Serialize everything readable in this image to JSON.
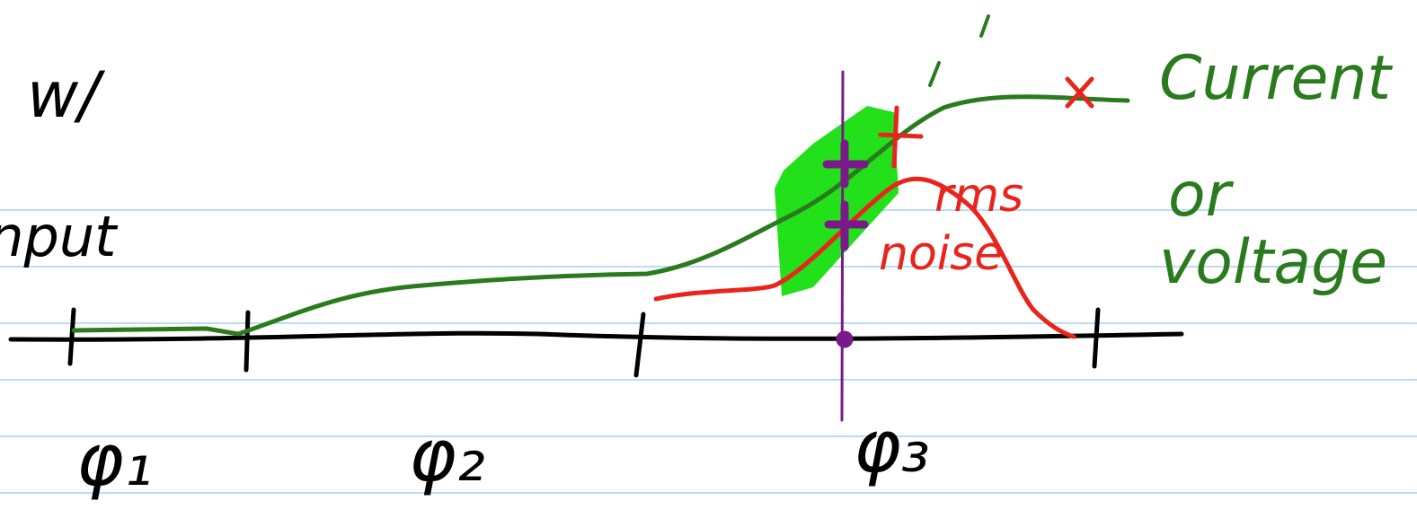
{
  "annotations": {
    "top_left": "w/",
    "left": "input",
    "output_label": [
      "Current",
      "or",
      "voltage"
    ],
    "rms": "rms",
    "noise": "noise"
  },
  "axis_labels": [
    "φ₁",
    "φ₂",
    "φ₃"
  ]
}
